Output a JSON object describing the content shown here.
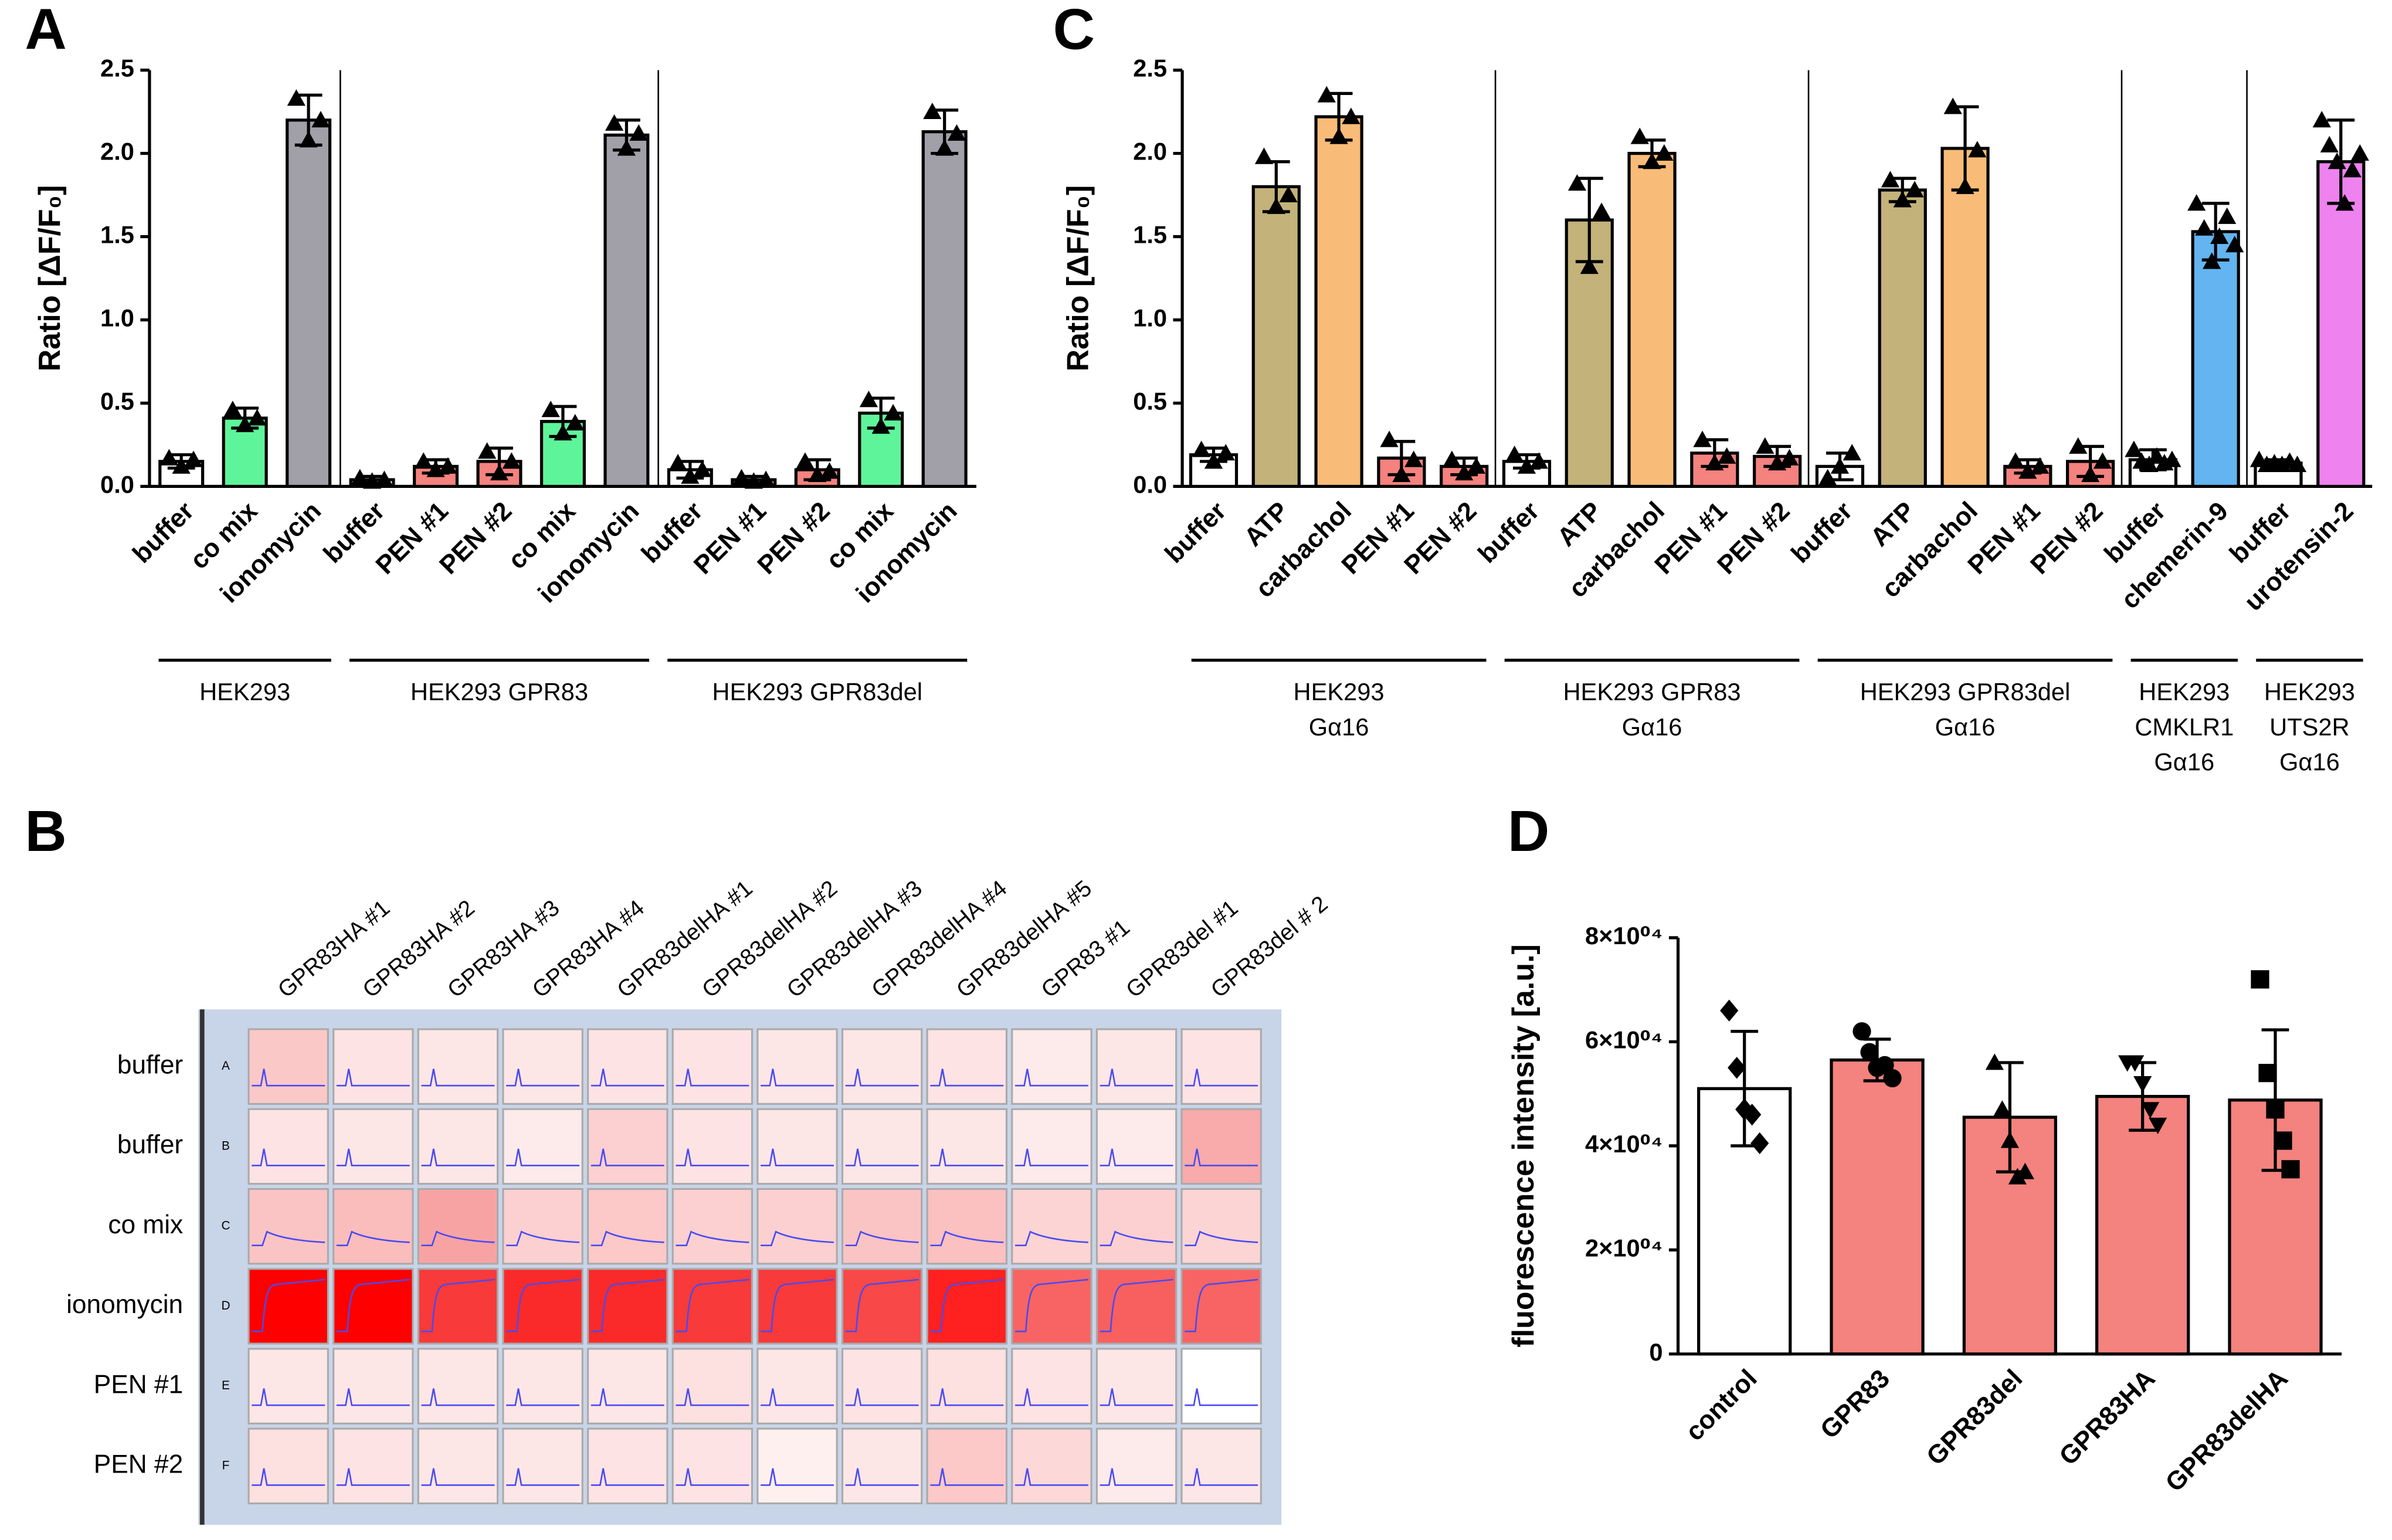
{
  "chart_data": [
    {
      "type": "bar",
      "panel": "A",
      "ylabel": "Ratio [ΔF/F₀]",
      "ylim": [
        0,
        2.5
      ],
      "yticks": [
        {
          "value": 0,
          "label": "0.0"
        },
        0.5,
        {
          "value": 1,
          "label": "1.0"
        },
        1.5,
        {
          "value": 2,
          "label": "2.0"
        },
        2.5
      ],
      "marker": "triangle",
      "groups": [
        {
          "label": [
            "HEK293"
          ],
          "categories": [
            "buffer",
            "co mix",
            "ionomycin"
          ],
          "values": [
            0.15,
            0.41,
            2.2
          ],
          "errors": [
            0.04,
            0.06,
            0.15
          ],
          "colors": [
            "#ffffff",
            "#5ef59a",
            "#a19fa8"
          ],
          "points": [
            [
              0.17,
              0.12,
              0.16
            ],
            [
              0.46,
              0.37,
              0.41
            ],
            [
              2.33,
              2.08,
              2.2
            ]
          ]
        },
        {
          "label": [
            "HEK293 GPR83"
          ],
          "categories": [
            "buffer",
            "PEN #1",
            "PEN #2",
            "co mix",
            "ionomycin"
          ],
          "values": [
            0.04,
            0.12,
            0.15,
            0.39,
            2.11
          ],
          "errors": [
            0.02,
            0.04,
            0.08,
            0.09,
            0.09
          ],
          "colors": [
            "#ffffff",
            "#f4827e",
            "#f4827e",
            "#5ef59a",
            "#a19fa8"
          ],
          "points": [
            [
              0.05,
              0.03,
              0.04
            ],
            [
              0.15,
              0.1,
              0.12
            ],
            [
              0.21,
              0.08,
              0.15
            ],
            [
              0.46,
              0.32,
              0.38
            ],
            [
              2.18,
              2.03,
              2.12
            ]
          ]
        },
        {
          "label": [
            "HEK293 GPR83del"
          ],
          "categories": [
            "buffer",
            "PEN #1",
            "PEN #2",
            "co mix",
            "ionomycin"
          ],
          "values": [
            0.1,
            0.04,
            0.1,
            0.44,
            2.13
          ],
          "errors": [
            0.05,
            0.02,
            0.06,
            0.09,
            0.13
          ],
          "colors": [
            "#ffffff",
            "#f4827e",
            "#f4827e",
            "#5ef59a",
            "#a19fa8"
          ],
          "points": [
            [
              0.14,
              0.06,
              0.1
            ],
            [
              0.05,
              0.03,
              0.04
            ],
            [
              0.15,
              0.07,
              0.09
            ],
            [
              0.52,
              0.36,
              0.44
            ],
            [
              2.25,
              2.03,
              2.12
            ]
          ]
        }
      ]
    },
    {
      "type": "heatmap",
      "panel": "B",
      "columns": [
        "GPR83HA #1",
        "GPR83HA #2",
        "GPR83HA #3",
        "GPR83HA #4",
        "GPR83delHA #1",
        "GPR83delHA #2",
        "GPR83delHA #3",
        "GPR83delHA #4",
        "GPR83delHA #5",
        "GPR83 #1",
        "GPR83del #1",
        "GPR83del # 2"
      ],
      "rows": [
        "buffer",
        "buffer",
        "co mix",
        "ionomycin",
        "PEN #1",
        "PEN #2"
      ],
      "row_letters": [
        "A",
        "B",
        "C",
        "D",
        "E",
        "F"
      ],
      "trace_color": "#4a4af0",
      "colors": [
        [
          "#fbc8c8",
          "#fde3e3",
          "#fde6e6",
          "#fde6e6",
          "#fde3e3",
          "#fde3e3",
          "#fde6e6",
          "#fde6e6",
          "#fde3e3",
          "#fdeaea",
          "#fde6e6",
          "#fde3e3"
        ],
        [
          "#fde3e3",
          "#fde6e6",
          "#fde6e6",
          "#fdeaea",
          "#fcd0d0",
          "#fde3e3",
          "#fde6e6",
          "#fde6e6",
          "#fde6e6",
          "#fdeaea",
          "#fdeaea",
          "#f9aaaa"
        ],
        [
          "#fbc4c4",
          "#fbbcbc",
          "#f8a3a3",
          "#fcd0d0",
          "#fcc8c8",
          "#fcd0d0",
          "#fcd0d0",
          "#fbc4c4",
          "#fbc0c0",
          "#fcd4d4",
          "#fcd0d0",
          "#fcd4d4"
        ],
        [
          "#ff0000",
          "#ff0000",
          "#f83a3a",
          "#fb2a2a",
          "#fb2a2a",
          "#f83a3a",
          "#f83a3a",
          "#f84848",
          "#ff2020",
          "#f86464",
          "#f86060",
          "#f86464"
        ],
        [
          "#fde6e6",
          "#fde6e6",
          "#fde6e6",
          "#fde6e6",
          "#fde6e6",
          "#fde0e0",
          "#fde6e6",
          "#fde3e3",
          "#fde0e0",
          "#fde3e3",
          "#fde6e6",
          "#ffffff"
        ],
        [
          "#fde0e0",
          "#fde3e3",
          "#fde6e6",
          "#fde6e6",
          "#fde3e3",
          "#fde3e3",
          "#fff0f0",
          "#fde6e6",
          "#fcc8c8",
          "#fcd8d8",
          "#fdeaea",
          "#fde6e6"
        ]
      ]
    },
    {
      "type": "bar",
      "panel": "C",
      "ylabel": "Ratio [ΔF/F₀]",
      "ylim": [
        0,
        2.5
      ],
      "yticks": [
        {
          "value": 0,
          "label": "0.0"
        },
        0.5,
        {
          "value": 1,
          "label": "1.0"
        },
        1.5,
        {
          "value": 2,
          "label": "2.0"
        },
        2.5
      ],
      "marker": "triangle",
      "groups": [
        {
          "label": [
            "HEK293",
            "Gα16"
          ],
          "categories": [
            "buffer",
            "ATP",
            "carbachol",
            "PEN #1",
            "PEN #2"
          ],
          "values": [
            0.19,
            1.8,
            2.22,
            0.17,
            0.12
          ],
          "errors": [
            0.04,
            0.15,
            0.14,
            0.1,
            0.05
          ],
          "colors": [
            "#ffffff",
            "#c3b27a",
            "#f9bc78",
            "#f4827e",
            "#f4827e"
          ],
          "points": [
            [
              0.22,
              0.15,
              0.2
            ],
            [
              1.98,
              1.68,
              1.75
            ],
            [
              2.35,
              2.1,
              2.22
            ],
            [
              0.28,
              0.07,
              0.16
            ],
            [
              0.16,
              0.08,
              0.12
            ]
          ]
        },
        {
          "label": [
            "HEK293 GPR83",
            "Gα16"
          ],
          "categories": [
            "buffer",
            "ATP",
            "carbachol",
            "PEN #1",
            "PEN #2"
          ],
          "values": [
            0.15,
            1.6,
            2.0,
            0.2,
            0.18
          ],
          "errors": [
            0.04,
            0.25,
            0.08,
            0.08,
            0.06
          ],
          "colors": [
            "#ffffff",
            "#c3b27a",
            "#f9bc78",
            "#f4827e",
            "#f4827e"
          ],
          "points": [
            [
              0.19,
              0.12,
              0.15
            ],
            [
              1.82,
              1.32,
              1.65
            ],
            [
              2.1,
              1.95,
              2.0
            ],
            [
              0.28,
              0.14,
              0.18
            ],
            [
              0.24,
              0.14,
              0.17
            ]
          ]
        },
        {
          "label": [
            "HEK293 GPR83del",
            "Gα16"
          ],
          "categories": [
            "buffer",
            "ATP",
            "carbachol",
            "PEN #1",
            "PEN #2"
          ],
          "values": [
            0.12,
            1.78,
            2.03,
            0.12,
            0.15
          ],
          "errors": [
            0.08,
            0.07,
            0.25,
            0.04,
            0.09
          ],
          "colors": [
            "#ffffff",
            "#c3b27a",
            "#f9bc78",
            "#f4827e",
            "#f4827e"
          ],
          "points": [
            [
              0.05,
              0.12,
              0.2
            ],
            [
              1.84,
              1.72,
              1.78
            ],
            [
              2.28,
              1.8,
              2.02
            ],
            [
              0.15,
              0.09,
              0.12
            ],
            [
              0.24,
              0.07,
              0.15
            ]
          ]
        },
        {
          "label": [
            "HEK293",
            "CMKLR1",
            "Gα16"
          ],
          "categories": [
            "buffer",
            "chemerin-9"
          ],
          "values": [
            0.16,
            1.53
          ],
          "errors": [
            0.06,
            0.17
          ],
          "colors": [
            "#ffffff",
            "#63b4f0"
          ],
          "points": [
            [
              0.22,
              0.15,
              0.13,
              0.18,
              0.14,
              0.16
            ],
            [
              1.7,
              1.55,
              1.35,
              1.5,
              1.62,
              1.45
            ]
          ]
        },
        {
          "label": [
            "HEK293",
            "UTS2R",
            "Gα16"
          ],
          "categories": [
            "buffer",
            "urotensin-2"
          ],
          "values": [
            0.14,
            1.95
          ],
          "errors": [
            0.02,
            0.25
          ],
          "colors": [
            "#ffffff",
            "#ee82ee"
          ],
          "points": [
            [
              0.16,
              0.13,
              0.14,
              0.13,
              0.15,
              0.13
            ],
            [
              2.2,
              2.05,
              1.95,
              1.7,
              1.9,
              2.0
            ]
          ]
        }
      ]
    },
    {
      "type": "bar",
      "panel": "D",
      "ylabel": "fluorescence intensity [a.u.]",
      "ylim": [
        0,
        80000
      ],
      "yticks": [
        0,
        {
          "value": 20000,
          "label": "2×10⁰⁴"
        },
        {
          "value": 40000,
          "label": "4×10⁰⁴"
        },
        {
          "value": 60000,
          "label": "6×10⁰⁴"
        },
        {
          "value": 80000,
          "label": "8×10⁰⁴"
        }
      ],
      "categories": [
        "control",
        "GPR83",
        "GPR83del",
        "GPR83HA",
        "GPR83delHA"
      ],
      "values": [
        51000,
        56500,
        45500,
        49500,
        48800
      ],
      "errors": [
        11000,
        4000,
        10500,
        6500,
        13500
      ],
      "colors": [
        "#ffffff",
        "#f4827e",
        "#f4827e",
        "#f4827e",
        "#f4827e"
      ],
      "markers": [
        "diamond",
        "circle",
        "triangle",
        "triangle-down",
        "square"
      ],
      "points": [
        [
          66000,
          55000,
          47000,
          46000,
          40500
        ],
        [
          62000,
          58000,
          55000,
          55500,
          53000
        ],
        [
          56000,
          47000,
          41000,
          34000,
          35000
        ],
        [
          56000,
          56000,
          52000,
          47000,
          44000
        ],
        [
          72000,
          54000,
          47000,
          41000,
          35500
        ]
      ]
    }
  ]
}
